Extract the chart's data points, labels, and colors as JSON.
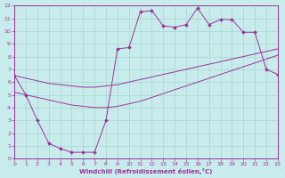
{
  "bg_color": "#c8ecec",
  "grid_color": "#a8d4d4",
  "line_color": "#993399",
  "xlim": [
    0,
    23
  ],
  "ylim": [
    0,
    12
  ],
  "xticks": [
    0,
    1,
    2,
    3,
    4,
    5,
    6,
    7,
    8,
    9,
    10,
    11,
    12,
    13,
    14,
    15,
    16,
    17,
    18,
    19,
    20,
    21,
    22,
    23
  ],
  "yticks": [
    0,
    1,
    2,
    3,
    4,
    5,
    6,
    7,
    8,
    9,
    10,
    11,
    12
  ],
  "xlabel": "Windchill (Refroidissement éolien,°C)",
  "line1_x": [
    0,
    1,
    2,
    3,
    4,
    5,
    6,
    7,
    8,
    9,
    10,
    11,
    12,
    13,
    14,
    15,
    16,
    17,
    18,
    19,
    20,
    21,
    22,
    23
  ],
  "line1_y": [
    6.5,
    5.0,
    3.0,
    1.2,
    0.8,
    0.5,
    0.5,
    0.5,
    3.0,
    8.6,
    8.7,
    11.5,
    11.6,
    10.4,
    10.3,
    10.5,
    11.8,
    10.5,
    10.9,
    10.9,
    9.9,
    9.9,
    7.0,
    6.6
  ],
  "line2_x": [
    0,
    1,
    2,
    3,
    4,
    5,
    6,
    7,
    8,
    9,
    10,
    11,
    12,
    13,
    14,
    15,
    16,
    17,
    18,
    19,
    20,
    21,
    22,
    23
  ],
  "line2_y": [
    6.5,
    6.3,
    6.1,
    5.9,
    5.8,
    5.7,
    5.6,
    5.6,
    5.7,
    5.8,
    6.0,
    6.2,
    6.4,
    6.6,
    6.8,
    7.0,
    7.2,
    7.4,
    7.6,
    7.8,
    8.0,
    8.2,
    8.4,
    8.6
  ],
  "line3_x": [
    0,
    1,
    2,
    3,
    4,
    5,
    6,
    7,
    8,
    9,
    10,
    11,
    12,
    13,
    14,
    15,
    16,
    17,
    18,
    19,
    20,
    21,
    22,
    23
  ],
  "line3_y": [
    5.2,
    5.0,
    4.8,
    4.6,
    4.4,
    4.2,
    4.1,
    4.0,
    4.0,
    4.1,
    4.3,
    4.5,
    4.8,
    5.1,
    5.4,
    5.7,
    6.0,
    6.3,
    6.6,
    6.9,
    7.2,
    7.5,
    7.8,
    8.1
  ]
}
